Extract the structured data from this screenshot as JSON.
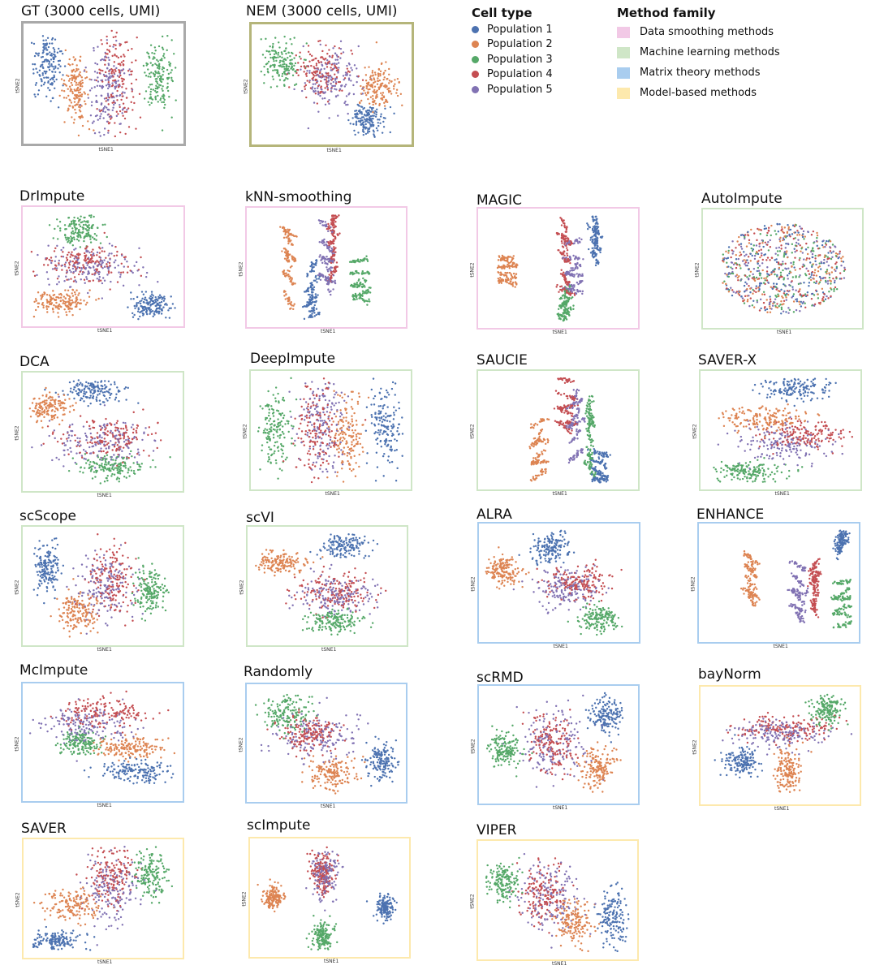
{
  "axis_labels": {
    "x": "tSNE1",
    "y": "tSNE2"
  },
  "legend_cell": {
    "title": "Cell type",
    "items": [
      {
        "label": "Population 1",
        "color": "#4c72b0"
      },
      {
        "label": "Population 2",
        "color": "#dd8452"
      },
      {
        "label": "Population 3",
        "color": "#55a868"
      },
      {
        "label": "Population 4",
        "color": "#c44e52"
      },
      {
        "label": "Population 5",
        "color": "#8172b3"
      }
    ]
  },
  "legend_family": {
    "title": "Method family",
    "items": [
      {
        "label": "Data smoothing methods",
        "color": "#f2c9e6"
      },
      {
        "label": "Machine learning methods",
        "color": "#cfe6c7"
      },
      {
        "label": "Matrix theory methods",
        "color": "#a9cdef"
      },
      {
        "label": "Model-based methods",
        "color": "#fde9ad"
      }
    ]
  },
  "chart_data": [
    {
      "type": "scatter",
      "title": "GT (3000 cells, UMI)",
      "border": "#a9a9a9",
      "layout": "blobs",
      "clusters": [
        [
          0.14,
          0.35,
          0.09,
          0.26,
          1
        ],
        [
          0.33,
          0.55,
          0.08,
          0.28,
          2
        ],
        [
          0.58,
          0.5,
          0.12,
          0.42,
          4
        ],
        [
          0.85,
          0.45,
          0.1,
          0.32,
          3
        ],
        [
          0.52,
          0.55,
          0.12,
          0.35,
          5
        ]
      ]
    },
    {
      "type": "scatter",
      "title": "NEM (3000 cells, UMI)",
      "border": "#b5b57a",
      "layout": "blobs",
      "clusters": [
        [
          0.18,
          0.32,
          0.13,
          0.18,
          3
        ],
        [
          0.44,
          0.4,
          0.16,
          0.22,
          4
        ],
        [
          0.5,
          0.45,
          0.18,
          0.25,
          5
        ],
        [
          0.8,
          0.52,
          0.11,
          0.18,
          2
        ],
        [
          0.72,
          0.8,
          0.11,
          0.14,
          1
        ]
      ]
    },
    {
      "type": "scatter",
      "title": "DrImpute",
      "border": "#f2c9e6",
      "layout": "blobs",
      "clusters": [
        [
          0.35,
          0.2,
          0.13,
          0.13,
          3
        ],
        [
          0.38,
          0.47,
          0.28,
          0.15,
          4
        ],
        [
          0.4,
          0.5,
          0.3,
          0.18,
          5
        ],
        [
          0.25,
          0.8,
          0.17,
          0.1,
          2
        ],
        [
          0.8,
          0.83,
          0.13,
          0.1,
          1
        ]
      ]
    },
    {
      "type": "scatter",
      "title": "kNN-smoothing",
      "border": "#f2c9e6",
      "layout": "fragments",
      "clusters": [
        [
          0.3,
          0.55,
          0.2,
          0.35,
          2
        ],
        [
          0.45,
          0.75,
          0.2,
          0.25,
          1
        ],
        [
          0.6,
          0.3,
          0.35,
          0.3,
          4
        ],
        [
          0.75,
          0.6,
          0.2,
          0.2,
          3
        ],
        [
          0.55,
          0.35,
          0.3,
          0.3,
          5
        ]
      ]
    },
    {
      "type": "scatter",
      "title": "MAGIC",
      "border": "#f2c9e6",
      "layout": "fragments",
      "clusters": [
        [
          0.2,
          0.5,
          0.2,
          0.12,
          2
        ],
        [
          0.75,
          0.25,
          0.15,
          0.2,
          1
        ],
        [
          0.55,
          0.4,
          0.15,
          0.3,
          4
        ],
        [
          0.55,
          0.78,
          0.1,
          0.15,
          3
        ],
        [
          0.6,
          0.5,
          0.12,
          0.25,
          5
        ]
      ]
    },
    {
      "type": "scatter",
      "title": "AutoImpute",
      "border": "#cfe6c7",
      "layout": "uniform",
      "clusters": [
        [
          0.5,
          0.5,
          0.4,
          0.38,
          1
        ],
        [
          0.5,
          0.5,
          0.4,
          0.38,
          2
        ],
        [
          0.5,
          0.5,
          0.4,
          0.38,
          3
        ],
        [
          0.5,
          0.5,
          0.4,
          0.38,
          4
        ],
        [
          0.5,
          0.5,
          0.4,
          0.38,
          5
        ]
      ]
    },
    {
      "type": "scatter",
      "title": "DCA",
      "border": "#cfe6c7",
      "layout": "blobs",
      "clusters": [
        [
          0.45,
          0.15,
          0.2,
          0.1,
          1
        ],
        [
          0.15,
          0.3,
          0.14,
          0.12,
          2
        ],
        [
          0.55,
          0.55,
          0.28,
          0.18,
          4
        ],
        [
          0.55,
          0.8,
          0.23,
          0.1,
          3
        ],
        [
          0.5,
          0.6,
          0.3,
          0.2,
          5
        ]
      ]
    },
    {
      "type": "scatter",
      "title": "DeepImpute",
      "border": "#cfe6c7",
      "layout": "blobs",
      "clusters": [
        [
          0.15,
          0.5,
          0.1,
          0.35,
          3
        ],
        [
          0.4,
          0.5,
          0.14,
          0.4,
          4
        ],
        [
          0.6,
          0.55,
          0.1,
          0.38,
          2
        ],
        [
          0.85,
          0.45,
          0.1,
          0.35,
          1
        ],
        [
          0.45,
          0.45,
          0.16,
          0.38,
          5
        ]
      ]
    },
    {
      "type": "scatter",
      "title": "SAUCIE",
      "border": "#cfe6c7",
      "layout": "fragments",
      "clusters": [
        [
          0.3,
          0.6,
          0.25,
          0.3,
          2
        ],
        [
          0.6,
          0.55,
          0.3,
          0.3,
          3
        ],
        [
          0.45,
          0.3,
          0.3,
          0.25,
          4
        ],
        [
          0.7,
          0.8,
          0.2,
          0.15,
          1
        ],
        [
          0.5,
          0.5,
          0.3,
          0.3,
          5
        ]
      ]
    },
    {
      "type": "scatter",
      "title": "SAVER-X",
      "border": "#cfe6c7",
      "layout": "blobs",
      "clusters": [
        [
          0.6,
          0.15,
          0.22,
          0.1,
          1
        ],
        [
          0.4,
          0.4,
          0.3,
          0.1,
          2
        ],
        [
          0.65,
          0.55,
          0.25,
          0.12,
          4
        ],
        [
          0.3,
          0.85,
          0.22,
          0.1,
          3
        ],
        [
          0.5,
          0.62,
          0.3,
          0.15,
          5
        ]
      ]
    },
    {
      "type": "scatter",
      "title": "scScope",
      "border": "#cfe6c7",
      "layout": "blobs",
      "clusters": [
        [
          0.15,
          0.35,
          0.08,
          0.2,
          1
        ],
        [
          0.35,
          0.72,
          0.12,
          0.15,
          2
        ],
        [
          0.55,
          0.45,
          0.15,
          0.3,
          4
        ],
        [
          0.8,
          0.55,
          0.1,
          0.2,
          3
        ],
        [
          0.5,
          0.5,
          0.2,
          0.3,
          5
        ]
      ]
    },
    {
      "type": "scatter",
      "title": "scVI",
      "border": "#cfe6c7",
      "layout": "blobs",
      "clusters": [
        [
          0.6,
          0.15,
          0.15,
          0.12,
          1
        ],
        [
          0.2,
          0.3,
          0.17,
          0.1,
          2
        ],
        [
          0.55,
          0.55,
          0.25,
          0.15,
          4
        ],
        [
          0.55,
          0.8,
          0.18,
          0.1,
          3
        ],
        [
          0.55,
          0.58,
          0.25,
          0.18,
          5
        ]
      ]
    },
    {
      "type": "scatter",
      "title": "ALRA",
      "border": "#a9cdef",
      "layout": "blobs",
      "clusters": [
        [
          0.45,
          0.2,
          0.12,
          0.14,
          1
        ],
        [
          0.15,
          0.4,
          0.12,
          0.12,
          2
        ],
        [
          0.62,
          0.5,
          0.2,
          0.15,
          4
        ],
        [
          0.75,
          0.8,
          0.12,
          0.12,
          3
        ],
        [
          0.55,
          0.55,
          0.2,
          0.18,
          5
        ]
      ]
    },
    {
      "type": "scatter",
      "title": "ENHANCE",
      "border": "#a9cdef",
      "layout": "fragments",
      "clusters": [
        [
          0.65,
          0.15,
          0.3,
          0.1,
          1
        ],
        [
          0.2,
          0.45,
          0.15,
          0.2,
          2
        ],
        [
          0.6,
          0.55,
          0.15,
          0.2,
          4
        ],
        [
          0.8,
          0.65,
          0.12,
          0.25,
          3
        ],
        [
          0.45,
          0.6,
          0.2,
          0.25,
          5
        ]
      ]
    },
    {
      "type": "scatter",
      "title": "McImpute",
      "border": "#a9cdef",
      "layout": "blobs",
      "clusters": [
        [
          0.5,
          0.25,
          0.28,
          0.12,
          4
        ],
        [
          0.4,
          0.35,
          0.3,
          0.15,
          5
        ],
        [
          0.35,
          0.5,
          0.13,
          0.1,
          3
        ],
        [
          0.68,
          0.55,
          0.25,
          0.1,
          2
        ],
        [
          0.7,
          0.75,
          0.23,
          0.1,
          1
        ]
      ]
    },
    {
      "type": "scatter",
      "title": "Randomly",
      "border": "#a9cdef",
      "layout": "blobs",
      "clusters": [
        [
          0.25,
          0.25,
          0.16,
          0.15,
          3
        ],
        [
          0.4,
          0.42,
          0.2,
          0.15,
          4
        ],
        [
          0.45,
          0.45,
          0.25,
          0.2,
          5
        ],
        [
          0.55,
          0.75,
          0.15,
          0.15,
          2
        ],
        [
          0.85,
          0.65,
          0.1,
          0.16,
          1
        ]
      ]
    },
    {
      "type": "scatter",
      "title": "scRMD",
      "border": "#a9cdef",
      "layout": "blobs",
      "clusters": [
        [
          0.8,
          0.25,
          0.1,
          0.15,
          1
        ],
        [
          0.15,
          0.55,
          0.1,
          0.15,
          3
        ],
        [
          0.45,
          0.5,
          0.15,
          0.25,
          4
        ],
        [
          0.75,
          0.7,
          0.1,
          0.18,
          2
        ],
        [
          0.45,
          0.5,
          0.22,
          0.3,
          5
        ]
      ]
    },
    {
      "type": "scatter",
      "title": "bayNorm",
      "border": "#fde9ad",
      "layout": "blobs",
      "clusters": [
        [
          0.8,
          0.2,
          0.1,
          0.12,
          3
        ],
        [
          0.55,
          0.35,
          0.3,
          0.1,
          4
        ],
        [
          0.5,
          0.4,
          0.3,
          0.12,
          5
        ],
        [
          0.25,
          0.63,
          0.13,
          0.12,
          1
        ],
        [
          0.55,
          0.72,
          0.08,
          0.2,
          2
        ]
      ]
    },
    {
      "type": "scatter",
      "title": "SAVER",
      "border": "#fde9ad",
      "layout": "blobs",
      "clusters": [
        [
          0.55,
          0.3,
          0.14,
          0.28,
          4
        ],
        [
          0.8,
          0.3,
          0.1,
          0.2,
          3
        ],
        [
          0.3,
          0.55,
          0.18,
          0.14,
          2
        ],
        [
          0.2,
          0.85,
          0.16,
          0.08,
          1
        ],
        [
          0.55,
          0.45,
          0.18,
          0.3,
          5
        ]
      ]
    },
    {
      "type": "scatter",
      "title": "scImpute",
      "border": "#fde9ad",
      "layout": "blobs",
      "clusters": [
        [
          0.15,
          0.5,
          0.06,
          0.1,
          2
        ],
        [
          0.45,
          0.3,
          0.08,
          0.18,
          4
        ],
        [
          0.47,
          0.32,
          0.08,
          0.2,
          5
        ],
        [
          0.45,
          0.82,
          0.06,
          0.12,
          3
        ],
        [
          0.85,
          0.58,
          0.06,
          0.1,
          1
        ]
      ]
    },
    {
      "type": "scatter",
      "title": "VIPER",
      "border": "#fde9ad",
      "layout": "blobs",
      "clusters": [
        [
          0.15,
          0.35,
          0.1,
          0.15,
          3
        ],
        [
          0.4,
          0.45,
          0.15,
          0.25,
          4
        ],
        [
          0.45,
          0.45,
          0.2,
          0.3,
          5
        ],
        [
          0.6,
          0.7,
          0.12,
          0.2,
          2
        ],
        [
          0.85,
          0.65,
          0.1,
          0.25,
          1
        ]
      ]
    }
  ]
}
